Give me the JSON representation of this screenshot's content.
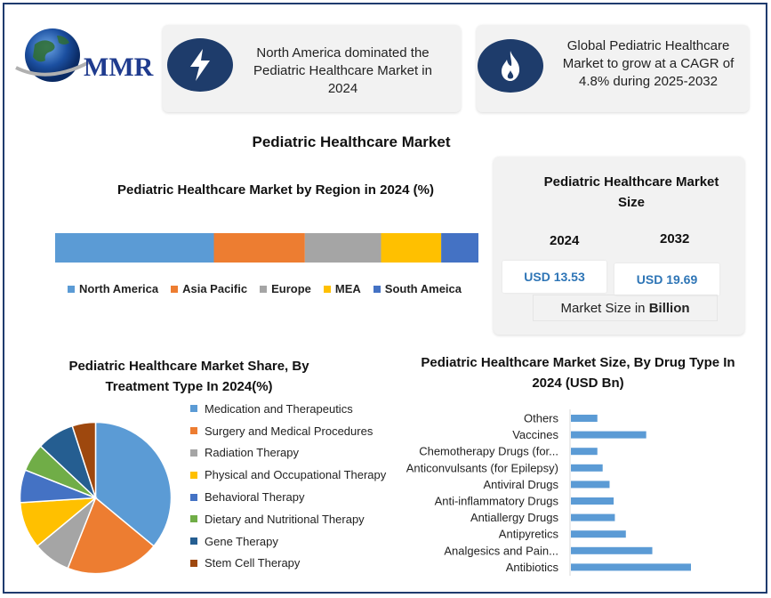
{
  "logo": {
    "text": "MMR",
    "name": "globe-logo-icon"
  },
  "cards": [
    {
      "icon": "lightning-bolt-icon",
      "text": "North America dominated the Pediatric Healthcare Market in 2024"
    },
    {
      "icon": "flame-icon",
      "text": "Global Pediatric Healthcare Market to grow at a CAGR of 4.8% during 2025-2032"
    }
  ],
  "main_title": "Pediatric Healthcare Market",
  "market_size": {
    "title": "Pediatric Healthcare Market Size",
    "year1": "2024",
    "year2": "2032",
    "value1": "USD 13.53",
    "value2": "USD 19.69",
    "footer_prefix": "Market Size in ",
    "footer_bold": "Billion"
  },
  "chart_data": [
    {
      "type": "bar",
      "orientation": "horizontal-stacked-100",
      "title": "Pediatric Healthcare Market by Region in 2024 (%)",
      "series": [
        {
          "name": "North America",
          "value": 37.5,
          "color": "#5b9bd5"
        },
        {
          "name": "Asia Pacific",
          "value": 21.5,
          "color": "#ed7d31"
        },
        {
          "name": "Europe",
          "value": 18.0,
          "color": "#a5a5a5"
        },
        {
          "name": "MEA",
          "value": 14.2,
          "color": "#ffc000"
        },
        {
          "name": "South Ameica",
          "value": 8.8,
          "color": "#4472c4"
        }
      ],
      "legend": "bottom"
    },
    {
      "type": "pie",
      "title": "Pediatric Healthcare Market Share, By Treatment Type In 2024(%)",
      "slices": [
        {
          "name": "Medication and Therapeutics",
          "value": 36,
          "color": "#5b9bd5"
        },
        {
          "name": "Surgery and Medical Procedures",
          "value": 20,
          "color": "#ed7d31"
        },
        {
          "name": "Radiation Therapy",
          "value": 8,
          "color": "#a5a5a5"
        },
        {
          "name": "Physical and Occupational Therapy",
          "value": 10,
          "color": "#ffc000"
        },
        {
          "name": "Behavioral Therapy",
          "value": 7,
          "color": "#4472c4"
        },
        {
          "name": "Dietary and Nutritional Therapy",
          "value": 6,
          "color": "#70ad47"
        },
        {
          "name": "Gene Therapy",
          "value": 8,
          "color": "#255e91"
        },
        {
          "name": "Stem Cell Therapy",
          "value": 5,
          "color": "#9e480e"
        }
      ],
      "legend": "right"
    },
    {
      "type": "bar",
      "orientation": "horizontal",
      "title": "Pediatric Healthcare Market Size, By Drug Type In 2024 (USD Bn)",
      "categories": [
        "Others",
        "Vaccines",
        "Chemotherapy Drugs (for...",
        "Anticonvulsants (for Epilepsy)",
        "Antiviral Drugs",
        "Anti-inflammatory Drugs",
        "Antiallergy Drugs",
        "Antipyretics",
        "Analgesics and Pain...",
        "Antibiotics"
      ],
      "values": [
        0.65,
        1.85,
        0.65,
        0.78,
        0.95,
        1.05,
        1.08,
        1.35,
        2.0,
        2.95
      ],
      "color": "#5b9bd5"
    }
  ]
}
